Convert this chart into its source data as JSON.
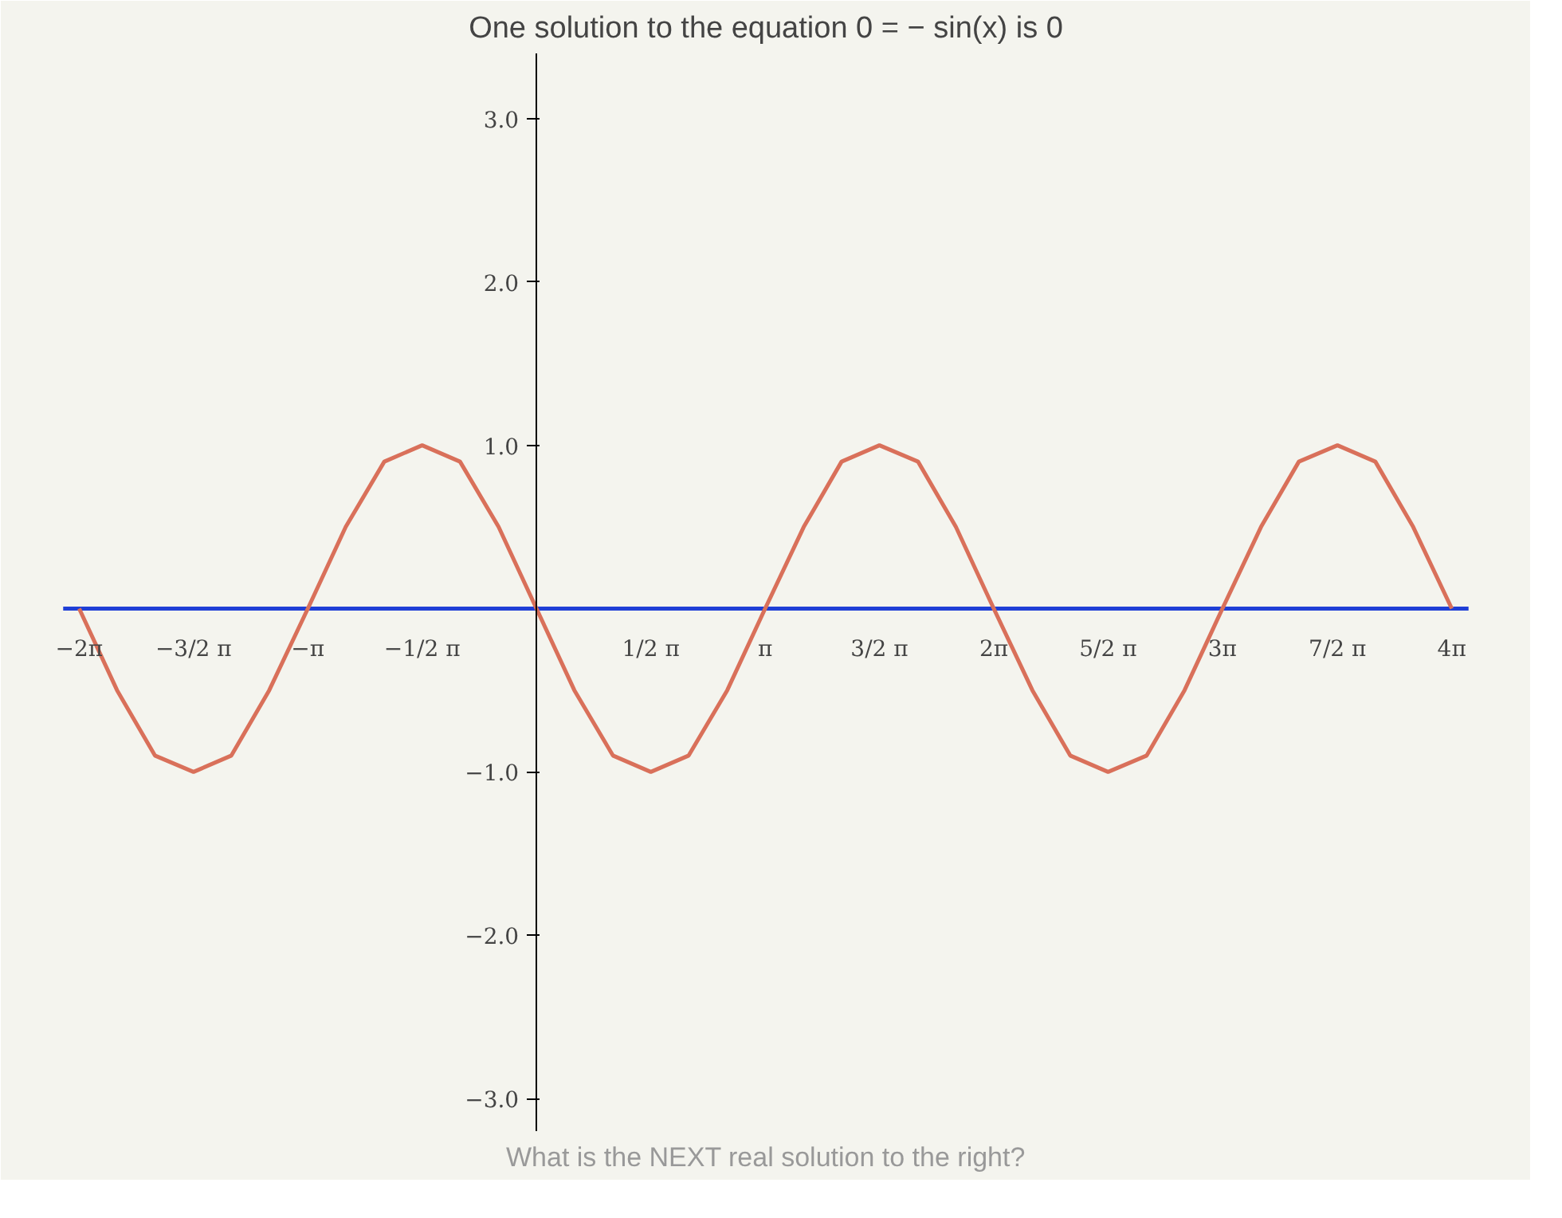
{
  "chart_data": {
    "type": "line",
    "title": "One solution to the equation 0 = − sin(x) is 0",
    "annotations": [
      "What is the NEXT real solution to the right?"
    ],
    "x": [
      -6.28,
      -5.76,
      -5.24,
      -4.71,
      -4.19,
      -3.67,
      -3.14,
      -2.62,
      -2.09,
      -1.57,
      -1.05,
      -0.52,
      0,
      0.52,
      1.05,
      1.57,
      2.09,
      2.62,
      3.14,
      3.67,
      4.19,
      4.71,
      5.24,
      5.76,
      6.28,
      6.81,
      7.33,
      7.85,
      8.38,
      8.9,
      9.42,
      9.95,
      10.47,
      11.0,
      11.52,
      12.04,
      12.57
    ],
    "series": [
      {
        "color": "#1f3fd6",
        "x": [
          -6.5,
          12.8
        ],
        "values": [
          0,
          0
        ]
      },
      {
        "color": "#d9705a",
        "values": [
          0,
          -0.5,
          -0.9,
          -1,
          -0.9,
          -0.5,
          0,
          0.5,
          0.9,
          1,
          0.9,
          0.5,
          0,
          -0.5,
          -0.9,
          -1,
          -0.9,
          -0.5,
          0,
          0.5,
          0.9,
          1,
          0.9,
          0.5,
          0,
          -0.5,
          -0.9,
          -1,
          -0.9,
          -0.5,
          0,
          0.5,
          0.9,
          1,
          0.9,
          0.5,
          0
        ]
      }
    ],
    "xlim": [
      -6.7,
      13.0
    ],
    "ylim": [
      -3.2,
      3.4
    ],
    "xticks": [
      {
        "value": -6.28,
        "label": "−2π"
      },
      {
        "value": -4.71,
        "label": "−3/2 π"
      },
      {
        "value": -3.14,
        "label": "−π"
      },
      {
        "value": -1.57,
        "label": "−1/2 π"
      },
      {
        "value": 1.57,
        "label": "1/2 π"
      },
      {
        "value": 3.14,
        "label": "π"
      },
      {
        "value": 4.71,
        "label": "3/2 π"
      },
      {
        "value": 6.28,
        "label": "2π"
      },
      {
        "value": 7.85,
        "label": "5/2 π"
      },
      {
        "value": 9.42,
        "label": "3π"
      },
      {
        "value": 11.0,
        "label": "7/2 π"
      },
      {
        "value": 12.57,
        "label": "4π"
      }
    ],
    "yticks": [
      {
        "value": 3,
        "label": "3.0"
      },
      {
        "value": 2,
        "label": "2.0"
      },
      {
        "value": 1,
        "label": "1.0"
      },
      {
        "value": -1,
        "label": "−1.0"
      },
      {
        "value": -2,
        "label": "−2.0"
      },
      {
        "value": -3,
        "label": "−3.0"
      }
    ]
  }
}
